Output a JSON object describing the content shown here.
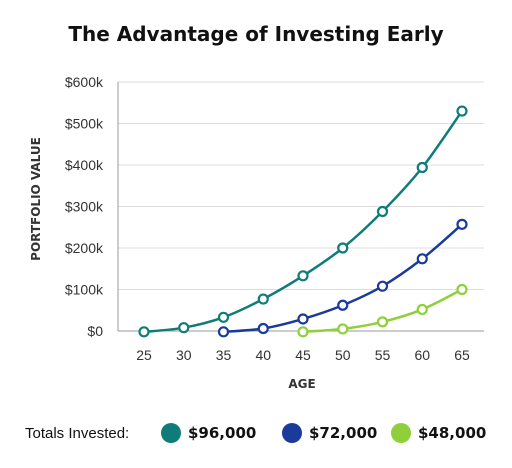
{
  "chart_data": {
    "type": "line",
    "title": "The Advantage of Investing Early",
    "xlabel": "AGE",
    "ylabel": "PORTFOLIO VALUE",
    "x": [
      25,
      30,
      35,
      40,
      45,
      50,
      55,
      60,
      65
    ],
    "ylim": [
      0,
      600000
    ],
    "xlim": [
      25,
      65
    ],
    "y_ticks": [
      "$0",
      "$100k",
      "$200k",
      "$300k",
      "$400k",
      "$500k",
      "$600k"
    ],
    "x_ticks": [
      "25",
      "30",
      "35",
      "40",
      "45",
      "50",
      "55",
      "60",
      "65"
    ],
    "grid": "horizontal",
    "legend_position": "bottom",
    "legend_label": "Totals Invested:",
    "series": [
      {
        "name": "$96,000",
        "color": "#0e7c78",
        "x": [
          25,
          30,
          35,
          40,
          45,
          50,
          55,
          60,
          65
        ],
        "values": [
          -2000,
          8000,
          33000,
          77000,
          133000,
          200000,
          288000,
          394000,
          530000
        ]
      },
      {
        "name": "$72,000",
        "color": "#1a3a9c",
        "x": [
          35,
          40,
          45,
          50,
          55,
          60,
          65
        ],
        "values": [
          -2000,
          6000,
          29000,
          62000,
          108000,
          174000,
          257000
        ]
      },
      {
        "name": "$48,000",
        "color": "#8fcf3a",
        "x": [
          45,
          50,
          55,
          60,
          65
        ],
        "values": [
          -2000,
          5000,
          22000,
          52000,
          100000
        ]
      }
    ]
  }
}
